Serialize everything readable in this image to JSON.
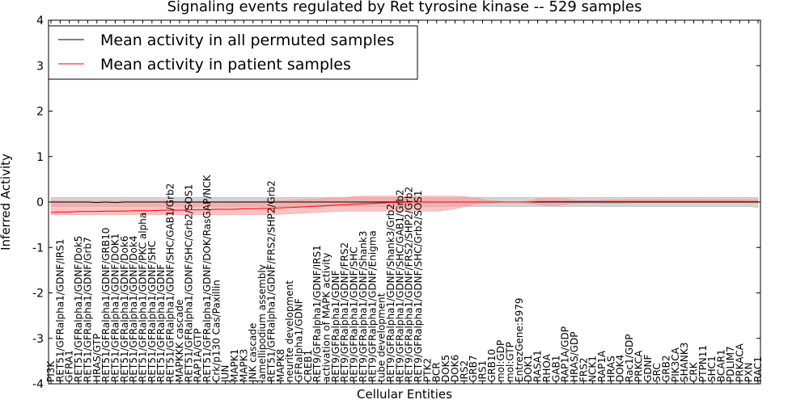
{
  "chart_data": {
    "type": "line",
    "title": "Signaling events regulated by Ret tyrosine kinase -- 529 samples",
    "xlabel": "Cellular Entities",
    "ylabel": "Inferred Activity",
    "ylim": [
      -4,
      4
    ],
    "yticks": [
      "-4",
      "-3",
      "-2",
      "-1",
      "0",
      "1",
      "2",
      "3",
      "4"
    ],
    "grid": false,
    "legend_position": "top-left",
    "categories": [
      "PI3K",
      "RET51/GFRalpha1/GDNF/IRS1",
      "GFRA1",
      "RET51/GFRalpha1/GDNF/Dok5",
      "RET51/GFRalpha1/GDNF/Grb7",
      "HRAS/GTP",
      "RET51/GFRalpha1/GDNF/GRB10",
      "RET51/GFRalpha1/GDNF/DOK1",
      "RET51/GFRalpha1/GDNF/Dok6",
      "RET51/GFRalpha1/GDNF/Dok4",
      "RET51/GFRalpha1/GDNF/PKC alpha",
      "RET51/GFRalpha1/GDNF/SHC",
      "RET51/GFRalpha1/GDNF",
      "RET51/GFRalpha1/GDNF/SHC/GAB1/Grb2",
      "MAPKKK cascade",
      "RET51/GFRalpha1/GDNF/SHC/Grb2/SOS1",
      "RAP1A/GTP",
      "RET51/GFRalpha1/GDNF/DOK/RasGAP/NCK",
      "Crk/p130 Cas/Paxillin",
      "JUN",
      "MAPK1",
      "MAPK3",
      "JNK cascade",
      "lamellipodium assembly",
      "RET51/GFRalpha1/GDNF/FRS2/SHP2/Grb2",
      "MAPK8",
      "neurite development",
      "GFRalpha1/GDNF",
      "CREB1",
      "RET9/GFRalpha1/GDNF/IRS1",
      "activation of MAPK activity",
      "RET9/GFRalpha1/GDNF",
      "RET9/GFRalpha1/GDNF/FRS2",
      "RET9/GFRalpha1/GDNF/SHC",
      "RET9/GFRalpha1/GDNF/Shank3",
      "RET9/GFRalpha1/GDNF/Enigma",
      "tube development",
      "RET9/GFRalpha1/GDNF/Shank3/Grb2",
      "RET9/GFRalpha1/GDNF/SHC/GAB1/Grb2",
      "RET9/GFRalpha1/GDNF/FRS2/SHP2/Grb2",
      "RET9/GFRalpha1/GDNF/SHC/Grb2/SOS1",
      "PTK2",
      "BCR",
      "DOK5",
      "DOK6",
      "IRS2",
      "GRB7",
      "IRS1",
      "GRB10",
      "mol:GDP",
      "mol:GTP",
      "EntrezGene:5979",
      "DOK1",
      "RASA1",
      "RHOA",
      "GAB1",
      "RAP1A/GDP",
      "HRAS/GDP",
      "FRS2",
      "NCK1",
      "RAP1A",
      "HRAS",
      "DOK4",
      "Rac1/GDP",
      "PRKCA",
      "GDNF",
      "SRC",
      "GRB2",
      "PIK3CA",
      "SHANK3",
      "CRK",
      "PTPN11",
      "SHC1",
      "BCAR1",
      "PDLIM7",
      "PRKACA",
      "PXN",
      "RAC1"
    ],
    "series": [
      {
        "name": "Mean activity in all permuted samples",
        "color": "#000000",
        "band_color": "#b0b0b0",
        "values": [
          0,
          0,
          0,
          0,
          0,
          -0.01,
          0,
          -0.01,
          0,
          0,
          0,
          0,
          0,
          0,
          0,
          0,
          0,
          0,
          0,
          0,
          0,
          0,
          0,
          0,
          0,
          0,
          0,
          0,
          0,
          0,
          0,
          0,
          0,
          0,
          0,
          0,
          0,
          0,
          0,
          0,
          0,
          0,
          0,
          0,
          0,
          0,
          0,
          0,
          0,
          0,
          0,
          0,
          0,
          0,
          0,
          0,
          0,
          0,
          0,
          0,
          0,
          0,
          0,
          0,
          0,
          0,
          0,
          0,
          0,
          0,
          0,
          0,
          0,
          0,
          0,
          0,
          0,
          0
        ],
        "lower": [
          -0.1,
          -0.1,
          -0.1,
          -0.1,
          -0.1,
          -0.1,
          -0.1,
          -0.1,
          -0.1,
          -0.1,
          -0.1,
          -0.1,
          -0.1,
          -0.1,
          -0.1,
          -0.1,
          -0.1,
          -0.1,
          -0.1,
          -0.1,
          -0.1,
          -0.1,
          -0.1,
          -0.1,
          -0.1,
          -0.1,
          -0.1,
          -0.1,
          -0.1,
          -0.1,
          -0.1,
          -0.1,
          -0.1,
          -0.1,
          -0.1,
          -0.1,
          -0.1,
          -0.1,
          -0.1,
          -0.1,
          -0.1,
          -0.1,
          -0.1,
          -0.1,
          -0.1,
          -0.1,
          -0.1,
          -0.1,
          -0.1,
          -0.1,
          -0.1,
          -0.1,
          -0.1,
          -0.1,
          -0.1,
          -0.1,
          -0.1,
          -0.1,
          -0.1,
          -0.1,
          -0.1,
          -0.1,
          -0.1,
          -0.1,
          -0.1,
          -0.1,
          -0.1,
          -0.1,
          -0.1,
          -0.1,
          -0.1,
          -0.1,
          -0.1,
          -0.1,
          -0.1,
          -0.1,
          -0.1,
          -0.12
        ],
        "upper": [
          0.1,
          0.1,
          0.1,
          0.1,
          0.1,
          0.1,
          0.1,
          0.1,
          0.1,
          0.1,
          0.1,
          0.1,
          0.1,
          0.1,
          0.1,
          0.1,
          0.1,
          0.1,
          0.1,
          0.1,
          0.1,
          0.1,
          0.1,
          0.1,
          0.1,
          0.1,
          0.1,
          0.1,
          0.1,
          0.1,
          0.1,
          0.1,
          0.1,
          0.1,
          0.1,
          0.1,
          0.1,
          0.1,
          0.1,
          0.1,
          0.1,
          0.1,
          0.1,
          0.1,
          0.1,
          0.1,
          0.1,
          0.1,
          0.1,
          0.1,
          0.1,
          0.1,
          0.1,
          0.1,
          0.1,
          0.1,
          0.1,
          0.1,
          0.1,
          0.1,
          0.1,
          0.1,
          0.1,
          0.1,
          0.1,
          0.1,
          0.1,
          0.1,
          0.1,
          0.1,
          0.1,
          0.1,
          0.1,
          0.1,
          0.1,
          0.1,
          0.1,
          0.1
        ]
      },
      {
        "name": "Mean activity in patient samples",
        "color": "#ff0000",
        "band_color": "#ff9999",
        "values": [
          -0.23,
          -0.22,
          -0.22,
          -0.21,
          -0.21,
          -0.21,
          -0.2,
          -0.2,
          -0.2,
          -0.19,
          -0.19,
          -0.19,
          -0.18,
          -0.18,
          -0.18,
          -0.17,
          -0.17,
          -0.17,
          -0.16,
          -0.16,
          -0.16,
          -0.15,
          -0.15,
          -0.14,
          -0.14,
          -0.13,
          -0.12,
          -0.11,
          -0.1,
          -0.09,
          -0.08,
          -0.07,
          -0.06,
          -0.05,
          -0.04,
          -0.03,
          -0.02,
          -0.01,
          -0.01,
          0,
          0,
          0,
          0,
          0,
          0,
          0,
          0,
          0,
          0,
          0,
          0,
          0,
          0,
          0.01,
          0.01,
          0.01,
          0.01,
          0.01,
          0.01,
          0.01,
          0.01,
          0.01,
          0.01,
          0.01,
          0.01,
          0.01,
          0.01,
          0.01,
          0.01,
          0.01,
          0.01,
          0.01,
          0.01,
          0.01,
          0.01,
          0.01,
          0.01,
          0.01
        ],
        "lower": [
          -0.28,
          -0.28,
          -0.28,
          -0.28,
          -0.28,
          -0.28,
          -0.28,
          -0.28,
          -0.28,
          -0.28,
          -0.28,
          -0.28,
          -0.28,
          -0.28,
          -0.28,
          -0.28,
          -0.28,
          -0.28,
          -0.28,
          -0.28,
          -0.28,
          -0.28,
          -0.28,
          -0.28,
          -0.28,
          -0.27,
          -0.26,
          -0.25,
          -0.24,
          -0.23,
          -0.22,
          -0.21,
          -0.2,
          -0.2,
          -0.2,
          -0.2,
          -0.2,
          -0.2,
          -0.2,
          -0.2,
          -0.2,
          -0.2,
          -0.2,
          -0.18,
          -0.15,
          -0.1,
          -0.06,
          -0.03,
          -0.02,
          0,
          0,
          0,
          -0.02,
          -0.06,
          -0.08,
          -0.08,
          -0.06,
          -0.03,
          -0.02,
          -0.02,
          -0.03,
          -0.03,
          -0.03,
          -0.02,
          -0.02,
          -0.02,
          -0.02,
          -0.02,
          -0.02,
          -0.02,
          -0.02,
          -0.02,
          -0.02,
          -0.02,
          -0.02,
          -0.02,
          -0.02,
          -0.02
        ],
        "upper": [
          0.03,
          0.02,
          0.02,
          0.02,
          0.02,
          0.02,
          0.02,
          0.02,
          0.02,
          0.02,
          0.02,
          0.02,
          0.02,
          0.02,
          0.01,
          0.01,
          0.01,
          0.01,
          0.01,
          0.01,
          0.01,
          0.01,
          0.01,
          0.02,
          0.02,
          0.03,
          0.04,
          0.05,
          0.06,
          0.07,
          0.08,
          0.09,
          0.1,
          0.12,
          0.13,
          0.13,
          0.13,
          0.13,
          0.13,
          0.13,
          0.13,
          0.13,
          0.13,
          0.13,
          0.13,
          0.12,
          0.1,
          0.06,
          0.03,
          0.01,
          0,
          0,
          0.02,
          0.07,
          0.08,
          0.08,
          0.07,
          0.04,
          0.03,
          0.03,
          0.04,
          0.05,
          0.05,
          0.05,
          0.05,
          0.05,
          0.05,
          0.05,
          0.05,
          0.05,
          0.05,
          0.05,
          0.05,
          0.05,
          0.05,
          0.05,
          0.05,
          0.05
        ]
      }
    ]
  }
}
